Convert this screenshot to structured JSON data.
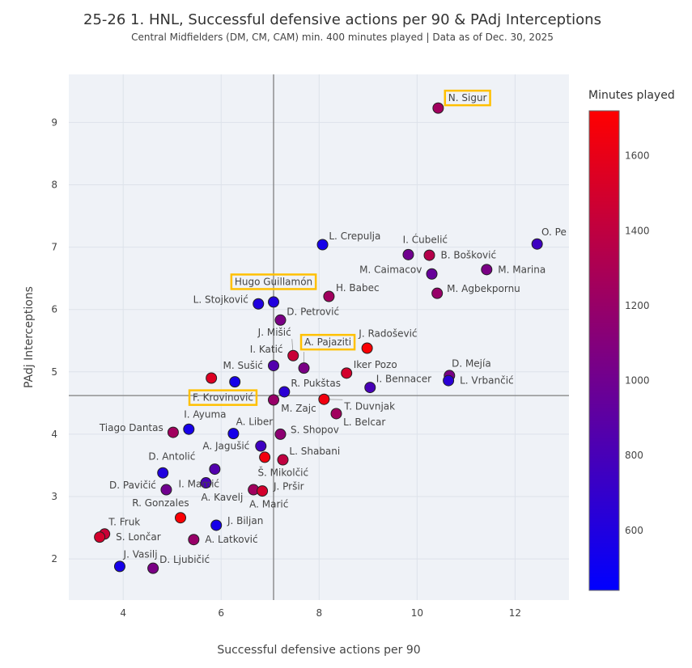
{
  "chart_data": {
    "type": "scatter",
    "title": "25-26 1. HNL, Successful defensive actions per 90 & PAdj Interceptions",
    "subtitle": "Central Midfielders (DM, CM, CAM) min. 400 minutes played | Data as of Dec. 30, 2025",
    "xlabel": "Successful defensive actions per 90",
    "ylabel": "PAdj Interceptions",
    "xlim": [
      2.89,
      13.1
    ],
    "ylim": [
      1.34,
      9.77
    ],
    "xticks": [
      4,
      6,
      8,
      10,
      12
    ],
    "yticks": [
      2,
      3,
      4,
      5,
      6,
      7,
      8,
      9
    ],
    "grid": true,
    "reference_lines": {
      "x": 7.07,
      "y": 4.62,
      "color": "#7f7f7f"
    },
    "colorbar": {
      "title": "Minutes played",
      "range": [
        440,
        1720
      ],
      "ticks": [
        600,
        800,
        1000,
        1200,
        1400,
        1600
      ],
      "colorscale": [
        "#0000ff",
        "#ff0000"
      ]
    },
    "highlight_color": "#FFC000",
    "points": [
      {
        "name": "N. Sigur",
        "x": 10.43,
        "y": 9.23,
        "minutes": 1250,
        "highlight": true
      },
      {
        "name": "L. Crepulja",
        "x": 8.07,
        "y": 7.04,
        "minutes": 550
      },
      {
        "name": "I. Ćubelić",
        "x": 9.82,
        "y": 6.88,
        "minutes": 1000
      },
      {
        "name": "B. Bošković",
        "x": 10.25,
        "y": 6.87,
        "minutes": 1350
      },
      {
        "name": "O. Pe",
        "x": 12.45,
        "y": 7.05,
        "minutes": 750
      },
      {
        "name": "M. Caimacov",
        "x": 10.3,
        "y": 6.57,
        "minutes": 950
      },
      {
        "name": "M. Marina",
        "x": 11.42,
        "y": 6.64,
        "minutes": 1050
      },
      {
        "name": "M. Agbekpornu",
        "x": 10.41,
        "y": 6.26,
        "minutes": 1200
      },
      {
        "name": "H. Babec",
        "x": 8.2,
        "y": 6.21,
        "minutes": 1250
      },
      {
        "name": "Hugo Guillamón",
        "x": 7.07,
        "y": 6.12,
        "minutes": 600,
        "highlight": true
      },
      {
        "name": "L. Stojković",
        "x": 6.76,
        "y": 6.09,
        "minutes": 600
      },
      {
        "name": "D. Petrović",
        "x": 7.21,
        "y": 5.83,
        "minutes": 1050
      },
      {
        "name": "J. Mišić",
        "x": 7.47,
        "y": 5.26,
        "minutes": 1450
      },
      {
        "name": "J. Radošević",
        "x": 8.98,
        "y": 5.38,
        "minutes": 1700
      },
      {
        "name": "A. Pajaziti",
        "x": 7.69,
        "y": 5.06,
        "minutes": 1050,
        "highlight": true
      },
      {
        "name": "I. Katić",
        "x": 7.07,
        "y": 5.1,
        "minutes": 850
      },
      {
        "name": "F. Krovinović",
        "x": 5.8,
        "y": 4.9,
        "minutes": 1550,
        "highlight": true
      },
      {
        "name": "M. Sušić",
        "x": 6.28,
        "y": 4.84,
        "minutes": 550
      },
      {
        "name": "Iker Pozo",
        "x": 8.56,
        "y": 4.98,
        "minutes": 1500
      },
      {
        "name": "D. Mejía",
        "x": 10.66,
        "y": 4.94,
        "minutes": 1050
      },
      {
        "name": "L. Vrbančić",
        "x": 10.64,
        "y": 4.86,
        "minutes": 650
      },
      {
        "name": "I. Bennacer",
        "x": 9.04,
        "y": 4.75,
        "minutes": 800
      },
      {
        "name": "R. Pukštas",
        "x": 7.29,
        "y": 4.68,
        "minutes": 650
      },
      {
        "name": "M. Zajc",
        "x": 7.07,
        "y": 4.55,
        "minutes": 1200
      },
      {
        "name": "T. Duvnjak",
        "x": 8.1,
        "y": 4.56,
        "minutes": 1650
      },
      {
        "name": "L. Belcar",
        "x": 8.35,
        "y": 4.33,
        "minutes": 1250
      },
      {
        "name": "I. Ayuma",
        "x": 5.34,
        "y": 4.08,
        "minutes": 550
      },
      {
        "name": "Tiago Dantas",
        "x": 5.02,
        "y": 4.03,
        "minutes": 1250
      },
      {
        "name": "A. Liber",
        "x": 6.25,
        "y": 4.01,
        "minutes": 550
      },
      {
        "name": "S. Shopov",
        "x": 7.21,
        "y": 4.0,
        "minutes": 1150
      },
      {
        "name": "A. Jagušić",
        "x": 6.81,
        "y": 3.81,
        "minutes": 750
      },
      {
        "name": "Š. Mikolčić",
        "x": 6.89,
        "y": 3.63,
        "minutes": 1650
      },
      {
        "name": "L. Shabani",
        "x": 7.26,
        "y": 3.59,
        "minutes": 1400
      },
      {
        "name": "D. Antolić",
        "x": 4.81,
        "y": 3.38,
        "minutes": 600
      },
      {
        "name": "I. Mamić",
        "x": 5.87,
        "y": 3.44,
        "minutes": 850
      },
      {
        "name": "D. Pavičić",
        "x": 4.88,
        "y": 3.11,
        "minutes": 1000
      },
      {
        "name": "A. Kavelj",
        "x": 5.69,
        "y": 3.22,
        "minutes": 800
      },
      {
        "name": "A. Marić",
        "x": 6.66,
        "y": 3.11,
        "minutes": 1250
      },
      {
        "name": "J. Pršir",
        "x": 6.84,
        "y": 3.09,
        "minutes": 1500
      },
      {
        "name": "R. Gonzales",
        "x": 5.17,
        "y": 2.66,
        "minutes": 1700
      },
      {
        "name": "J. Biljan",
        "x": 5.9,
        "y": 2.54,
        "minutes": 550
      },
      {
        "name": "A. Latković",
        "x": 5.44,
        "y": 2.31,
        "minutes": 1200
      },
      {
        "name": "T. Fruk",
        "x": 3.62,
        "y": 2.4,
        "minutes": 1450
      },
      {
        "name": "S. Lončar",
        "x": 3.52,
        "y": 2.35,
        "minutes": 1500
      },
      {
        "name": "J. Vasilj",
        "x": 3.93,
        "y": 1.88,
        "minutes": 550
      },
      {
        "name": "D. Ljubičić",
        "x": 4.61,
        "y": 1.85,
        "minutes": 1050
      }
    ]
  }
}
